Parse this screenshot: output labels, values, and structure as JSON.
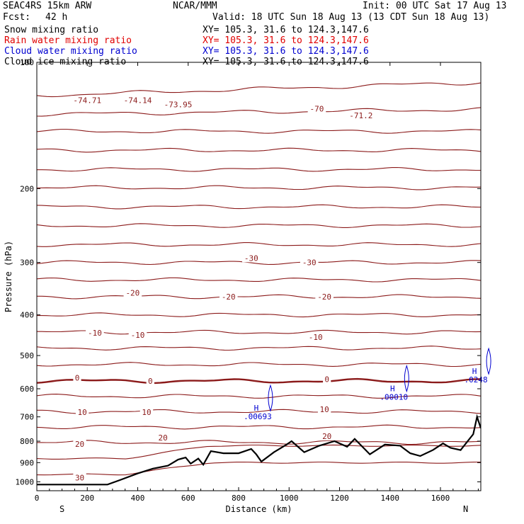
{
  "header": {
    "model": "SEAC4RS 15km ARW",
    "org": "NCAR/MMM",
    "init": "Init: 00 UTC Sat 17 Aug 13",
    "fcst_label": "Fcst:",
    "fcst_value": "42 h",
    "valid": "Valid: 18 UTC Sun 18 Aug 13 (13 CDT Sun 18 Aug 13)"
  },
  "fields": [
    {
      "name": "Snow mixing ratio",
      "xy": "XY= 105.3, 31.6 to 124.3,147.6",
      "color": "#000000"
    },
    {
      "name": "Rain water mixing ratio",
      "xy": "XY= 105.3, 31.6 to 124.3,147.6",
      "color": "#e00000"
    },
    {
      "name": "Cloud water mixing ratio",
      "xy": "XY= 105.3, 31.6 to 124.3,147.6",
      "color": "#0000d0"
    },
    {
      "name": "Cloud ice mixing ratio",
      "xy": "XY= 105.3, 31.6 to 124.3,147.6",
      "color": "#000000"
    }
  ],
  "chart_data": {
    "type": "line",
    "xlabel": "Distance (km)",
    "ylabel": "Pressure (hPa)",
    "xlim": [
      0,
      1760
    ],
    "ylim": [
      1050,
      100
    ],
    "y_scale": "log-pressure",
    "x_ticks": [
      "0",
      "200",
      "400",
      "600",
      "800",
      "1000",
      "1200",
      "1400",
      "1600"
    ],
    "y_ticks": [
      "100",
      "200",
      "300",
      "400",
      "500",
      "600",
      "700",
      "800",
      "900",
      "1000"
    ],
    "end_labels": {
      "left": "S",
      "right": "N"
    },
    "colors": {
      "isotherm": "#8b1a1a",
      "terrain": "#000000",
      "cloud": "#0000d0"
    },
    "temperature_labels": [
      {
        "text": "-74.71",
        "x": 200,
        "p": 124
      },
      {
        "text": "-74.14",
        "x": 400,
        "p": 124
      },
      {
        "text": "-73.95",
        "x": 560,
        "p": 127
      },
      {
        "text": "-70",
        "x": 1110,
        "p": 130
      },
      {
        "text": "-71.2",
        "x": 1285,
        "p": 135
      },
      {
        "text": "-30",
        "x": 850,
        "p": 295
      },
      {
        "text": "-30",
        "x": 1080,
        "p": 302
      },
      {
        "text": "-20",
        "x": 380,
        "p": 357
      },
      {
        "text": "-20",
        "x": 760,
        "p": 365
      },
      {
        "text": "-20",
        "x": 1140,
        "p": 365
      },
      {
        "text": "-10",
        "x": 230,
        "p": 445
      },
      {
        "text": "-10",
        "x": 400,
        "p": 450
      },
      {
        "text": "-10",
        "x": 1105,
        "p": 455
      },
      {
        "text": "0",
        "x": 160,
        "p": 569
      },
      {
        "text": "0",
        "x": 450,
        "p": 579
      },
      {
        "text": "0",
        "x": 1150,
        "p": 574
      },
      {
        "text": "10",
        "x": 180,
        "p": 688
      },
      {
        "text": "10",
        "x": 435,
        "p": 688
      },
      {
        "text": "10",
        "x": 1140,
        "p": 677
      },
      {
        "text": "20",
        "x": 170,
        "p": 818
      },
      {
        "text": "20",
        "x": 500,
        "p": 790
      },
      {
        "text": "20",
        "x": 1150,
        "p": 785
      },
      {
        "text": "30",
        "x": 170,
        "p": 984
      }
    ],
    "cloud_annotations": [
      {
        "label": "H",
        "value": ".00693",
        "x": 870,
        "p": 688
      },
      {
        "label": "H",
        "value": ".00010",
        "x": 1410,
        "p": 618
      },
      {
        "label": "H",
        "value": ".0248",
        "x": 1735,
        "p": 562
      }
    ],
    "isotherm_levels": [
      {
        "base": 120,
        "slope": -8,
        "bold": false
      },
      {
        "base": 133,
        "slope": -3,
        "bold": false
      },
      {
        "base": 146,
        "slope": 0,
        "bold": false
      },
      {
        "base": 162,
        "slope": 0,
        "bold": false
      },
      {
        "base": 180,
        "slope": 0,
        "bold": false
      },
      {
        "base": 199,
        "slope": 0,
        "bold": false
      },
      {
        "base": 221,
        "slope": 0,
        "bold": false
      },
      {
        "base": 245,
        "slope": 0,
        "bold": false
      },
      {
        "base": 272,
        "slope": 0,
        "bold": false
      },
      {
        "base": 300,
        "slope": 0,
        "bold": false
      },
      {
        "base": 330,
        "slope": 0,
        "bold": false
      },
      {
        "base": 362,
        "slope": 0,
        "bold": false
      },
      {
        "base": 400,
        "slope": 0,
        "bold": false
      },
      {
        "base": 440,
        "slope": 0,
        "bold": false
      },
      {
        "base": 480,
        "slope": 0,
        "bold": false
      },
      {
        "base": 525,
        "slope": 0,
        "bold": false
      },
      {
        "base": 575,
        "slope": 0,
        "bold": true
      },
      {
        "base": 625,
        "slope": 0,
        "bold": false
      },
      {
        "base": 680,
        "slope": 0,
        "bold": false
      },
      {
        "base": 740,
        "slope": 0,
        "bold": false
      },
      {
        "base": 805,
        "slope": 0,
        "bold": false
      }
    ],
    "terrain": [
      [
        0,
        1015
      ],
      [
        280,
        1015
      ],
      [
        330,
        990
      ],
      [
        400,
        955
      ],
      [
        460,
        930
      ],
      [
        520,
        915
      ],
      [
        560,
        885
      ],
      [
        590,
        875
      ],
      [
        610,
        905
      ],
      [
        640,
        880
      ],
      [
        660,
        910
      ],
      [
        690,
        845
      ],
      [
        740,
        855
      ],
      [
        800,
        855
      ],
      [
        850,
        835
      ],
      [
        870,
        860
      ],
      [
        890,
        895
      ],
      [
        940,
        850
      ],
      [
        990,
        815
      ],
      [
        1010,
        800
      ],
      [
        1060,
        850
      ],
      [
        1120,
        820
      ],
      [
        1180,
        800
      ],
      [
        1230,
        825
      ],
      [
        1260,
        790
      ],
      [
        1320,
        860
      ],
      [
        1380,
        815
      ],
      [
        1440,
        820
      ],
      [
        1480,
        855
      ],
      [
        1520,
        868
      ],
      [
        1570,
        840
      ],
      [
        1610,
        810
      ],
      [
        1640,
        830
      ],
      [
        1680,
        840
      ],
      [
        1730,
        770
      ],
      [
        1745,
        700
      ],
      [
        1760,
        745
      ]
    ]
  }
}
